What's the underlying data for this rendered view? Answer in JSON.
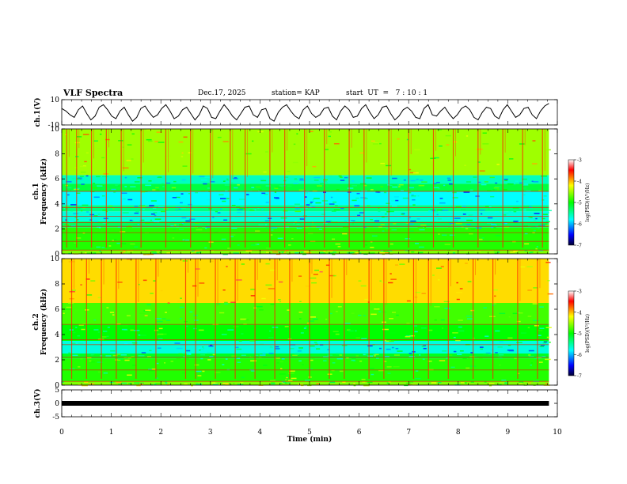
{
  "header": {
    "title": "VLF Spectra",
    "date": "Dec.17, 2025",
    "station": "station= KAP",
    "start_ut": "start  UT  =   7 : 10 : 1"
  },
  "chart_data": [
    {
      "id": "ch1-waveform",
      "type": "line",
      "ylabel": "ch.1(V)",
      "ylim": [
        -10,
        10
      ],
      "y_tick_labels": [
        "10",
        "-10"
      ],
      "x_range": [
        0,
        9.83
      ],
      "samples": [
        3,
        1,
        -2,
        -4,
        2,
        5,
        -1,
        -6,
        -3,
        4,
        6,
        2,
        -3,
        -5,
        1,
        4,
        -2,
        -7,
        -4,
        3,
        5,
        0,
        -4,
        -2,
        3,
        6,
        1,
        -5,
        -3,
        2,
        4,
        -1,
        -6,
        -2,
        5,
        3,
        -4,
        -5,
        1,
        6,
        2,
        -3,
        -6,
        -1,
        4,
        5,
        -2,
        -4,
        2,
        3,
        -5,
        -7,
        0,
        4,
        6,
        1,
        -3,
        -5,
        2,
        5,
        -1,
        -4,
        -2,
        3,
        4,
        -3,
        -6,
        1,
        5,
        2,
        -4,
        -3,
        3,
        6,
        0,
        -5,
        -2,
        4,
        5,
        -1,
        -6,
        -3,
        2,
        4,
        1,
        -4,
        -5,
        3,
        6,
        -2,
        -3,
        1,
        4,
        -1,
        -5,
        -2,
        3,
        5,
        2,
        -4,
        -6,
        0,
        4,
        3,
        -3,
        -5,
        2,
        6,
        1,
        -4,
        -2,
        3,
        4,
        -2,
        -5,
        1,
        5,
        7
      ]
    },
    {
      "id": "ch1-spectrogram",
      "type": "heatmap",
      "ylabel": "ch.1\nFrequency  (kHz)",
      "ylim": [
        0,
        10
      ],
      "y_tick_labels": [
        "0",
        "2",
        "4",
        "6",
        "8",
        "10"
      ],
      "x_range": [
        0,
        9.83
      ],
      "colorbar": {
        "label": "log(PSD)(V²/Hz)",
        "range": [
          -7,
          -3
        ],
        "tick_labels": [
          "-3",
          "-4",
          "-5",
          "-6",
          "-7"
        ]
      },
      "bands_khz": [
        {
          "from": 0,
          "to": 0.3,
          "level": -4.6
        },
        {
          "from": 0.3,
          "to": 2.1,
          "level": -4.9
        },
        {
          "from": 2.1,
          "to": 2.6,
          "level": -5.3
        },
        {
          "from": 2.6,
          "to": 3.4,
          "level": -5.7
        },
        {
          "from": 3.4,
          "to": 3.9,
          "level": -5.4
        },
        {
          "from": 3.9,
          "to": 5.0,
          "level": -5.8
        },
        {
          "from": 5.0,
          "to": 5.6,
          "level": -5.2
        },
        {
          "from": 5.6,
          "to": 6.3,
          "level": -5.6
        },
        {
          "from": 6.3,
          "to": 10,
          "level": -4.5
        }
      ],
      "sferics_min": [
        0.1,
        0.3,
        0.6,
        0.9,
        1.2,
        1.6,
        2.1,
        2.6,
        3.0,
        3.4,
        3.7,
        4.2,
        4.5,
        4.9,
        5.3,
        5.8,
        6.1,
        6.6,
        7.0,
        7.5,
        7.9,
        8.4,
        8.9,
        9.3,
        9.7
      ],
      "lines_khz": [
        0.3,
        1.0,
        1.7,
        2.2,
        2.5,
        3.0,
        3.7,
        5.0
      ]
    },
    {
      "id": "ch2-spectrogram",
      "type": "heatmap",
      "ylabel": "ch.2\nFrequency  (kHz)",
      "ylim": [
        0,
        10
      ],
      "y_tick_labels": [
        "0",
        "2",
        "4",
        "6",
        "8",
        "10"
      ],
      "x_range": [
        0,
        9.83
      ],
      "colorbar": {
        "label": "log(PSD)(V²/Hz)",
        "range": [
          -7,
          -3
        ],
        "tick_labels": [
          "-3",
          "-4",
          "-5",
          "-6",
          "-7"
        ]
      },
      "bands_khz": [
        {
          "from": 0,
          "to": 0.3,
          "level": -4.6
        },
        {
          "from": 0.3,
          "to": 2.1,
          "level": -4.9
        },
        {
          "from": 2.1,
          "to": 2.5,
          "level": -5.1
        },
        {
          "from": 2.5,
          "to": 3.5,
          "level": -5.7
        },
        {
          "from": 3.5,
          "to": 4.8,
          "level": -5.0
        },
        {
          "from": 4.8,
          "to": 6.5,
          "level": -4.8
        },
        {
          "from": 6.5,
          "to": 10,
          "level": -4.1
        }
      ],
      "sferics_min": [
        0.2,
        0.5,
        0.8,
        1.1,
        1.5,
        1.9,
        2.5,
        2.7,
        3.1,
        3.5,
        3.9,
        4.3,
        4.6,
        5.0,
        5.4,
        5.7,
        6.2,
        6.5,
        7.1,
        7.4,
        7.8,
        8.3,
        8.7,
        9.2,
        9.6
      ],
      "lines_khz": [
        0.3,
        1.2,
        2.2,
        3.2,
        3.6,
        4.8
      ]
    },
    {
      "id": "ch3-waveform",
      "type": "line",
      "ylabel": "ch.3(V)",
      "ylim": [
        -5,
        5
      ],
      "y_tick_labels": [
        "5",
        "0",
        "-5"
      ],
      "x_range": [
        0,
        9.83
      ],
      "level": 0
    }
  ],
  "x_axis": {
    "label": "Time  (min)",
    "range": [
      0,
      10
    ],
    "tick_labels": [
      "0",
      "1",
      "2",
      "3",
      "4",
      "5",
      "6",
      "7",
      "8",
      "9",
      "10"
    ]
  }
}
